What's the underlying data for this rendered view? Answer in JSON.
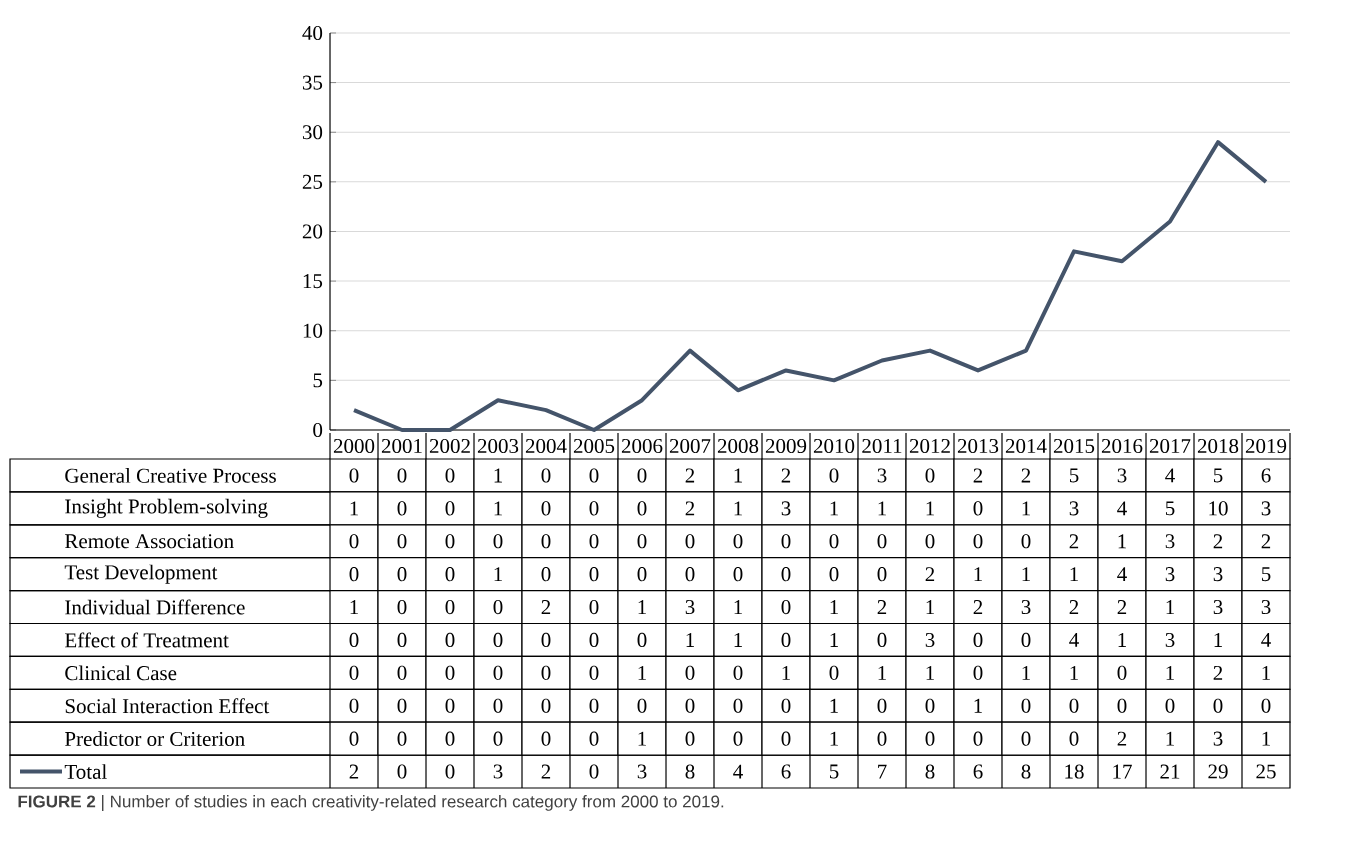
{
  "chart_data": [
    {
      "type": "line",
      "categories": [
        "2000",
        "2001",
        "2002",
        "2003",
        "2004",
        "2005",
        "2006",
        "2007",
        "2008",
        "2009",
        "2010",
        "2011",
        "2012",
        "2013",
        "2014",
        "2015",
        "2016",
        "2017",
        "2018",
        "2019"
      ],
      "series": [
        {
          "name": "Total",
          "color": "#44546a",
          "values": [
            2,
            0,
            0,
            3,
            2,
            0,
            3,
            8,
            4,
            6,
            5,
            7,
            8,
            6,
            8,
            18,
            17,
            21,
            29,
            25
          ]
        }
      ],
      "ylim": [
        0,
        40
      ],
      "yticks": [
        0,
        5,
        10,
        15,
        20,
        25,
        30,
        35,
        40
      ],
      "grid": "y",
      "legend": "bottom",
      "data_labels": true,
      "annotations": [
        "**FIGURE 2** | Number of studies in each creativity-related research category from 2000 to 2019."
      ]
    },
    {
      "type": "heatmap",
      "tick_labels": "y",
      "data_labels": true,
      "categories": [
        "2000",
        "2001",
        "2002",
        "2003",
        "2004",
        "2005",
        "2006",
        "2007",
        "2008",
        "2009",
        "2010",
        "2011",
        "2012",
        "2013",
        "2014",
        "2015",
        "2016",
        "2017",
        "2018",
        "2019"
      ],
      "y_categories": [
        "General Creative Process",
        "Insight Problem-solving",
        "Remote Association",
        "Test Development",
        "Individual Difference",
        "Effect of Treatment",
        "Clinical Case",
        "Social Interaction Effect",
        "Predictor or Criterion"
      ],
      "cells": [
        [
          0,
          0,
          0,
          1,
          0,
          0,
          0,
          2,
          1,
          2,
          0,
          3,
          0,
          2,
          2,
          5,
          3,
          4,
          5,
          6
        ],
        [
          1,
          0,
          0,
          1,
          0,
          0,
          0,
          2,
          1,
          3,
          1,
          1,
          1,
          0,
          1,
          3,
          4,
          5,
          10,
          3
        ],
        [
          0,
          0,
          0,
          0,
          0,
          0,
          0,
          0,
          0,
          0,
          0,
          0,
          0,
          0,
          0,
          2,
          1,
          3,
          2,
          2
        ],
        [
          0,
          0,
          0,
          1,
          0,
          0,
          0,
          0,
          0,
          0,
          0,
          0,
          2,
          1,
          1,
          1,
          4,
          3,
          3,
          5
        ],
        [
          1,
          0,
          0,
          0,
          2,
          0,
          1,
          3,
          1,
          0,
          1,
          2,
          1,
          2,
          3,
          2,
          2,
          1,
          3,
          3
        ],
        [
          0,
          0,
          0,
          0,
          0,
          0,
          0,
          1,
          1,
          0,
          1,
          0,
          3,
          0,
          0,
          4,
          1,
          3,
          1,
          4
        ],
        [
          0,
          0,
          0,
          0,
          0,
          0,
          1,
          0,
          0,
          1,
          0,
          1,
          1,
          0,
          1,
          1,
          0,
          1,
          2,
          1
        ],
        [
          0,
          0,
          0,
          0,
          0,
          0,
          0,
          0,
          0,
          0,
          1,
          0,
          0,
          1,
          0,
          0,
          0,
          0,
          0,
          0
        ],
        [
          0,
          0,
          0,
          0,
          0,
          0,
          1,
          0,
          0,
          0,
          1,
          0,
          0,
          0,
          0,
          0,
          2,
          1,
          3,
          1
        ]
      ]
    }
  ]
}
